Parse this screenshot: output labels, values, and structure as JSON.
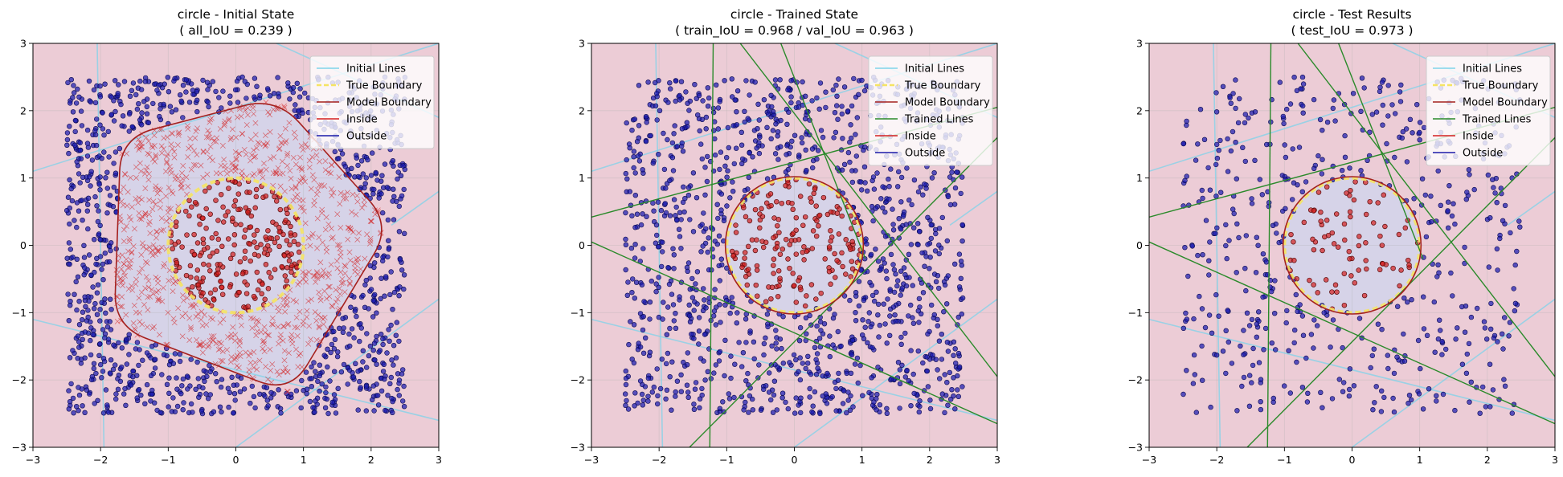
{
  "chart_data": [
    {
      "type": "scatter",
      "title": "circle - Initial State",
      "subtitle": "( all_IoU = 0.239 )",
      "xlim": [
        -3,
        3
      ],
      "ylim": [
        -3,
        3
      ],
      "xticks": [
        "−3",
        "−2",
        "−1",
        "0",
        "1",
        "2",
        "3"
      ],
      "yticks": [
        "−3",
        "−2",
        "−1",
        "0",
        "1",
        "2",
        "3"
      ],
      "grid": true,
      "legend_position": "top-right",
      "legend": [
        "Initial Lines",
        "True Boundary",
        "Model Boundary",
        "Inside",
        "Outside"
      ],
      "true_boundary": {
        "shape": "circle",
        "radius": 1
      },
      "model_boundary": {
        "shape": "rounded-pentagon",
        "points": [
          [
            0.6,
            2.2
          ],
          [
            2.3,
            0.3
          ],
          [
            0.8,
            -2.2
          ],
          [
            -1.8,
            -1.2
          ],
          [
            -1.7,
            1.6
          ]
        ]
      },
      "sample_range": [
        -2.5,
        2.5
      ],
      "sample_count": 2000,
      "inside_marker_outside_model": "x",
      "initial_lines": [
        [
          [
            -3,
            1.1
          ],
          [
            3,
            3
          ]
        ],
        [
          [
            -3,
            -1.1
          ],
          [
            3,
            -2.6
          ]
        ],
        [
          [
            -1.95,
            -3
          ],
          [
            -2.05,
            3
          ]
        ],
        [
          [
            0.0,
            -3
          ],
          [
            3,
            -0.8
          ]
        ],
        [
          [
            2.3,
            0.3
          ],
          [
            3,
            0.8
          ]
        ],
        [
          [
            0.6,
            3
          ],
          [
            3,
            1.9
          ]
        ]
      ],
      "colors": {
        "initial_line": "#7fd3ea",
        "true_boundary": "#f5e463",
        "model_boundary": "#a5211f",
        "inside": "#d42020",
        "outside": "#1a1aa8",
        "region_out": "#ecccd6",
        "region_in": "#d6d3e8",
        "trained_line": "#2a8a2a"
      }
    },
    {
      "type": "scatter",
      "title": "circle - Trained State",
      "subtitle": "( train_IoU = 0.968 / val_IoU = 0.963 )",
      "xlim": [
        -3,
        3
      ],
      "ylim": [
        -3,
        3
      ],
      "xticks": [
        "−3",
        "−2",
        "−1",
        "0",
        "1",
        "2",
        "3"
      ],
      "yticks": [
        "−3",
        "−2",
        "−1",
        "0",
        "1",
        "2",
        "3"
      ],
      "grid": true,
      "legend_position": "top-right",
      "legend": [
        "Initial Lines",
        "True Boundary",
        "Model Boundary",
        "Trained Lines",
        "Inside",
        "Outside"
      ],
      "true_boundary": {
        "shape": "circle",
        "radius": 1
      },
      "model_boundary": {
        "shape": "circle",
        "radius": 1.02
      },
      "sample_range": [
        -2.5,
        2.5
      ],
      "sample_count": 1400,
      "initial_lines": [
        [
          [
            -3,
            1.1
          ],
          [
            3,
            3
          ]
        ],
        [
          [
            -3,
            -1.1
          ],
          [
            3,
            -2.6
          ]
        ],
        [
          [
            -1.95,
            -3
          ],
          [
            -2.05,
            3
          ]
        ],
        [
          [
            0.0,
            -3
          ],
          [
            3,
            -0.8
          ]
        ],
        [
          [
            2.3,
            0.3
          ],
          [
            3,
            0.8
          ]
        ],
        [
          [
            0.6,
            3
          ],
          [
            3,
            1.9
          ]
        ]
      ],
      "trained_lines": [
        [
          [
            -1.25,
            -3
          ],
          [
            -1.2,
            3
          ]
        ],
        [
          [
            -3,
            0.42
          ],
          [
            3,
            2.05
          ]
        ],
        [
          [
            -3,
            0.05
          ],
          [
            3,
            -2.65
          ]
        ],
        [
          [
            -0.8,
            3
          ],
          [
            3,
            -1.95
          ]
        ],
        [
          [
            -1.55,
            -3
          ],
          [
            3,
            1.6
          ]
        ],
        [
          [
            -0.2,
            3
          ],
          [
            1.05,
            -0.2
          ]
        ]
      ],
      "colors": {
        "initial_line": "#7fd3ea",
        "true_boundary": "#f5e463",
        "model_boundary": "#a5211f",
        "inside": "#d42020",
        "outside": "#1a1aa8",
        "region_out": "#ecccd6",
        "region_in": "#d6d3e8",
        "trained_line": "#2a8a2a"
      }
    },
    {
      "type": "scatter",
      "title": "circle - Test Results",
      "subtitle": "( test_IoU = 0.973 )",
      "xlim": [
        -3,
        3
      ],
      "ylim": [
        -3,
        3
      ],
      "xticks": [
        "−3",
        "−2",
        "−1",
        "0",
        "1",
        "2",
        "3"
      ],
      "yticks": [
        "−3",
        "−2",
        "−1",
        "0",
        "1",
        "2",
        "3"
      ],
      "grid": true,
      "legend_position": "top-right",
      "legend": [
        "Initial Lines",
        "True Boundary",
        "Model Boundary",
        "Trained Lines",
        "Inside",
        "Outside"
      ],
      "true_boundary": {
        "shape": "circle",
        "radius": 1
      },
      "model_boundary": {
        "shape": "circle",
        "radius": 1.02
      },
      "sample_range": [
        -2.5,
        2.5
      ],
      "sample_count": 600,
      "initial_lines": [
        [
          [
            -3,
            1.1
          ],
          [
            3,
            3
          ]
        ],
        [
          [
            -3,
            -1.1
          ],
          [
            3,
            -2.6
          ]
        ],
        [
          [
            -1.95,
            -3
          ],
          [
            -2.05,
            3
          ]
        ],
        [
          [
            0.0,
            -3
          ],
          [
            3,
            -0.8
          ]
        ],
        [
          [
            2.3,
            0.3
          ],
          [
            3,
            0.8
          ]
        ],
        [
          [
            0.6,
            3
          ],
          [
            3,
            1.9
          ]
        ]
      ],
      "trained_lines": [
        [
          [
            -1.25,
            -3
          ],
          [
            -1.2,
            3
          ]
        ],
        [
          [
            -3,
            0.42
          ],
          [
            3,
            2.05
          ]
        ],
        [
          [
            -3,
            0.05
          ],
          [
            3,
            -2.65
          ]
        ],
        [
          [
            -0.8,
            3
          ],
          [
            3,
            -1.95
          ]
        ],
        [
          [
            -1.55,
            -3
          ],
          [
            3,
            1.6
          ]
        ],
        [
          [
            -0.2,
            3
          ],
          [
            1.05,
            -0.2
          ]
        ]
      ],
      "colors": {
        "initial_line": "#7fd3ea",
        "true_boundary": "#f5e463",
        "model_boundary": "#a5211f",
        "inside": "#d42020",
        "outside": "#1a1aa8",
        "region_out": "#ecccd6",
        "region_in": "#d6d3e8",
        "trained_line": "#2a8a2a"
      }
    }
  ]
}
